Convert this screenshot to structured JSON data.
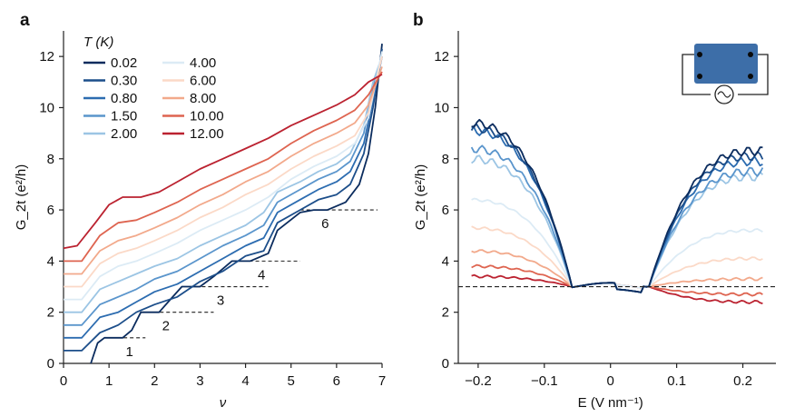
{
  "chart_data": [
    {
      "panel": "a",
      "type": "line",
      "xlabel": "ν",
      "ylabel": "G_2t (e²/h)",
      "xlim": [
        0,
        7
      ],
      "ylim": [
        0,
        13
      ],
      "xticks": [
        0,
        1,
        2,
        3,
        4,
        5,
        6,
        7
      ],
      "yticks": [
        0,
        2,
        4,
        6,
        8,
        10,
        12
      ],
      "legend_title": "T (K)",
      "legend_position": "top-left",
      "series": [
        {
          "name": "0.02",
          "color": "#0b2c5e",
          "x": [
            0.6,
            0.75,
            0.9,
            1.3,
            1.5,
            1.7,
            2.1,
            2.3,
            2.6,
            3.0,
            3.3,
            3.7,
            4.1,
            4.5,
            4.7,
            5.2,
            5.5,
            5.8,
            6.2,
            6.5,
            6.7,
            6.85,
            7.0
          ],
          "y": [
            0,
            0.8,
            1.0,
            1.0,
            1.3,
            2.0,
            2.0,
            2.4,
            3.0,
            3.0,
            3.4,
            4.0,
            4.0,
            4.3,
            5.2,
            5.9,
            6.0,
            6.0,
            6.3,
            7.0,
            8.2,
            10.0,
            12.5
          ]
        },
        {
          "name": "0.30",
          "color": "#1c4e8a",
          "x": [
            0,
            0.4,
            0.8,
            1.2,
            1.6,
            2.0,
            2.5,
            3.0,
            3.5,
            4.0,
            4.4,
            4.7,
            5.2,
            5.6,
            6.0,
            6.3,
            6.6,
            6.8,
            7.0
          ],
          "y": [
            0.5,
            0.5,
            1.2,
            1.5,
            2.0,
            2.3,
            2.6,
            3.2,
            3.6,
            4.2,
            4.4,
            5.5,
            6.0,
            6.4,
            6.6,
            7.0,
            8.2,
            10.0,
            12.3
          ]
        },
        {
          "name": "0.80",
          "color": "#2c6cb0",
          "x": [
            0,
            0.4,
            0.8,
            1.2,
            1.6,
            2.0,
            2.5,
            3.0,
            3.5,
            4.0,
            4.4,
            4.7,
            5.2,
            5.6,
            6.0,
            6.3,
            6.6,
            6.8,
            7.0
          ],
          "y": [
            1.0,
            1.0,
            1.8,
            2.0,
            2.4,
            2.8,
            3.1,
            3.6,
            4.1,
            4.6,
            4.9,
            5.9,
            6.4,
            6.8,
            7.1,
            7.5,
            8.6,
            10.3,
            12.0
          ]
        },
        {
          "name": "1.50",
          "color": "#5a95cc",
          "x": [
            0,
            0.4,
            0.8,
            1.2,
            1.6,
            2.0,
            2.5,
            3.0,
            3.5,
            4.0,
            4.4,
            4.7,
            5.2,
            5.6,
            6.0,
            6.3,
            6.6,
            6.8,
            7.0
          ],
          "y": [
            1.5,
            1.5,
            2.3,
            2.6,
            2.9,
            3.3,
            3.6,
            4.1,
            4.6,
            5.0,
            5.4,
            6.3,
            6.8,
            7.2,
            7.5,
            7.9,
            9.0,
            10.8,
            12.0
          ]
        },
        {
          "name": "2.00",
          "color": "#9cc5e4",
          "x": [
            0,
            0.4,
            0.8,
            1.2,
            1.6,
            2.0,
            2.5,
            3.0,
            3.5,
            4.0,
            4.4,
            4.7,
            5.2,
            5.6,
            6.0,
            6.3,
            6.6,
            6.8,
            7.0
          ],
          "y": [
            2.0,
            2.0,
            2.9,
            3.2,
            3.5,
            3.8,
            4.1,
            4.6,
            5.0,
            5.4,
            5.9,
            6.7,
            7.1,
            7.5,
            7.8,
            8.2,
            9.3,
            11.0,
            12.0
          ]
        },
        {
          "name": "4.00",
          "color": "#dcebf5",
          "x": [
            0,
            0.4,
            0.8,
            1.2,
            1.6,
            2.0,
            2.5,
            3.0,
            3.5,
            4.0,
            4.5,
            5.0,
            5.5,
            6.0,
            6.4,
            6.7,
            7.0
          ],
          "y": [
            2.5,
            2.5,
            3.4,
            3.8,
            4.0,
            4.3,
            4.7,
            5.2,
            5.6,
            6.0,
            6.5,
            7.2,
            7.7,
            8.1,
            8.6,
            9.6,
            12.2
          ]
        },
        {
          "name": "6.00",
          "color": "#fbd9c7",
          "x": [
            0,
            0.4,
            0.8,
            1.2,
            1.6,
            2.0,
            2.5,
            3.0,
            3.5,
            4.0,
            4.5,
            5.0,
            5.5,
            6.0,
            6.4,
            6.7,
            7.0
          ],
          "y": [
            3.0,
            3.0,
            3.9,
            4.3,
            4.5,
            4.8,
            5.2,
            5.7,
            6.1,
            6.6,
            7.0,
            7.6,
            8.1,
            8.5,
            8.9,
            9.8,
            12.0
          ]
        },
        {
          "name": "8.00",
          "color": "#f2a98b",
          "x": [
            0,
            0.4,
            0.8,
            1.2,
            1.6,
            2.0,
            2.5,
            3.0,
            3.5,
            4.0,
            4.5,
            5.0,
            5.5,
            6.0,
            6.4,
            6.7,
            7.0
          ],
          "y": [
            3.5,
            3.5,
            4.4,
            4.8,
            5.0,
            5.3,
            5.7,
            6.2,
            6.6,
            7.1,
            7.5,
            8.1,
            8.6,
            9.0,
            9.4,
            10.1,
            11.6
          ]
        },
        {
          "name": "10.00",
          "color": "#de6450",
          "x": [
            0,
            0.4,
            0.8,
            1.2,
            1.6,
            2.0,
            2.5,
            3.0,
            3.5,
            4.0,
            4.5,
            5.0,
            5.5,
            6.0,
            6.4,
            6.7,
            7.0
          ],
          "y": [
            4.0,
            4.0,
            5.0,
            5.5,
            5.6,
            5.9,
            6.3,
            6.8,
            7.2,
            7.6,
            8.0,
            8.6,
            9.1,
            9.5,
            9.9,
            10.5,
            11.4
          ]
        },
        {
          "name": "12.00",
          "color": "#bb2230",
          "x": [
            0,
            0.3,
            0.7,
            1.0,
            1.3,
            1.7,
            2.1,
            2.5,
            3.0,
            3.5,
            4.0,
            4.5,
            5.0,
            5.5,
            6.0,
            6.4,
            6.7,
            7.0
          ],
          "y": [
            4.5,
            4.6,
            5.5,
            6.2,
            6.5,
            6.5,
            6.7,
            7.1,
            7.6,
            8.0,
            8.4,
            8.8,
            9.3,
            9.7,
            10.1,
            10.5,
            11.0,
            11.3
          ]
        }
      ],
      "plateaus": [
        {
          "label": "1",
          "y": 1,
          "x_start": 0.9,
          "x_end": 1.8
        },
        {
          "label": "2",
          "y": 2,
          "x_start": 1.7,
          "x_end": 3.3
        },
        {
          "label": "3",
          "y": 3,
          "x_start": 2.9,
          "x_end": 4.5
        },
        {
          "label": "4",
          "y": 4,
          "x_start": 3.8,
          "x_end": 5.2
        },
        {
          "label": "6",
          "y": 6,
          "x_start": 5.2,
          "x_end": 6.9
        }
      ]
    },
    {
      "panel": "b",
      "type": "line",
      "xlabel": "E (V nm⁻¹)",
      "ylabel": "G_2t (e²/h)",
      "xlim": [
        -0.23,
        0.25
      ],
      "ylim": [
        0,
        13
      ],
      "xticks": [
        -0.2,
        -0.1,
        0,
        0.1,
        0.2
      ],
      "xtick_labels": [
        "−0.2",
        "−0.1",
        "0",
        "0.1",
        "0.2"
      ],
      "yticks": [
        0,
        2,
        4,
        6,
        8,
        10,
        12
      ],
      "reference_line": 3.0,
      "series": [
        {
          "name": "0.02",
          "color": "#0b2c5e",
          "left": 9.4,
          "right": 8.3
        },
        {
          "name": "0.30",
          "color": "#1c4e8a",
          "left": 9.2,
          "right": 8.1
        },
        {
          "name": "0.80",
          "color": "#2c6cb0",
          "left": 9.1,
          "right": 7.9
        },
        {
          "name": "1.50",
          "color": "#5a95cc",
          "left": 8.4,
          "right": 7.5
        },
        {
          "name": "2.00",
          "color": "#9cc5e4",
          "left": 8.0,
          "right": 7.3
        },
        {
          "name": "4.00",
          "color": "#dcebf5",
          "left": 6.4,
          "right": 5.2
        },
        {
          "name": "6.00",
          "color": "#fbd9c7",
          "left": 5.3,
          "right": 4.1
        },
        {
          "name": "8.00",
          "color": "#f2a98b",
          "left": 4.4,
          "right": 3.3
        },
        {
          "name": "10.00",
          "color": "#de6450",
          "left": 3.8,
          "right": 2.7
        },
        {
          "name": "12.00",
          "color": "#bb2230",
          "left": 3.4,
          "right": 2.4
        }
      ],
      "inset": "device schematic"
    }
  ]
}
